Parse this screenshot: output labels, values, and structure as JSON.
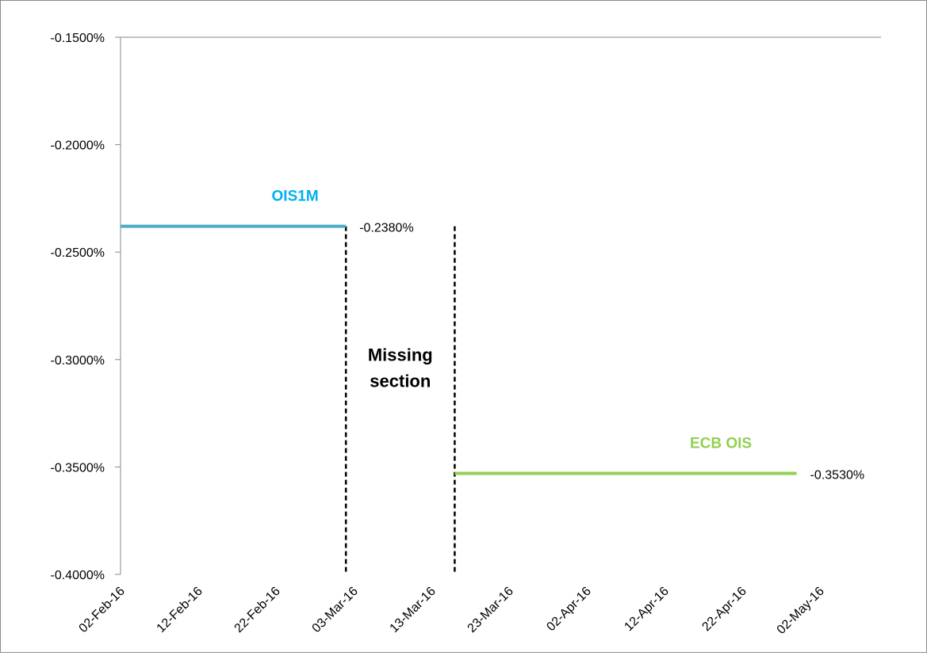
{
  "chart_data": {
    "type": "line",
    "title": "",
    "xlabel": "",
    "ylabel": "",
    "x_type": "date",
    "xlim": [
      "2016-02-02",
      "2016-05-02"
    ],
    "ylim": [
      -0.4,
      -0.15
    ],
    "y_unit": "%",
    "grid": false,
    "legend": "none",
    "y_ticks": [
      -0.15,
      -0.2,
      -0.25,
      -0.3,
      -0.35,
      -0.4
    ],
    "y_tick_labels": [
      "-0.1500%",
      "-0.2000%",
      "-0.2500%",
      "-0.3000%",
      "-0.3500%",
      "-0.4000%"
    ],
    "x_ticks": [
      "2016-02-02",
      "2016-02-12",
      "2016-02-22",
      "2016-03-03",
      "2016-03-13",
      "2016-03-23",
      "2016-04-02",
      "2016-04-12",
      "2016-04-22",
      "2016-05-02"
    ],
    "x_tick_labels": [
      "02-Feb-16",
      "12-Feb-16",
      "22-Feb-16",
      "03-Mar-16",
      "13-Mar-16",
      "23-Mar-16",
      "02-Apr-16",
      "12-Apr-16",
      "22-Apr-16",
      "02-May-16"
    ],
    "series": [
      {
        "name": "OIS1M",
        "color": "#4bacc6",
        "label_color": "#00b0f0",
        "x": [
          "2016-02-02",
          "2016-03-02"
        ],
        "y": [
          -0.238,
          -0.238
        ],
        "end_label": "-0.2380%"
      },
      {
        "name": "ECB OIS",
        "color": "#92d050",
        "label_color": "#92d050",
        "x": [
          "2016-03-16",
          "2016-04-29"
        ],
        "y": [
          -0.353,
          -0.353
        ],
        "end_label": "-0.3530%"
      }
    ],
    "markers": [
      {
        "type": "dashed-vline",
        "x": "2016-03-02",
        "y_range": [
          -0.4,
          -0.238
        ]
      },
      {
        "type": "dashed-vline",
        "x": "2016-03-16",
        "y_range": [
          -0.4,
          -0.238
        ]
      }
    ],
    "annotations": [
      {
        "text_lines": [
          "Missing",
          "section"
        ],
        "x": "2016-03-09",
        "y": -0.3035
      }
    ]
  }
}
